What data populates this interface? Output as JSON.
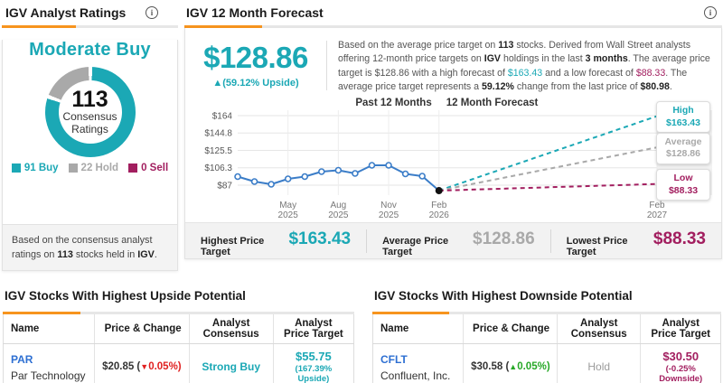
{
  "colors": {
    "accent_orange": "#F7941E",
    "teal": "#1BA8B5",
    "hold_gray": "#A9A9A9",
    "sell_magenta": "#A21E5F",
    "line_blue": "#3B7DC8",
    "link_blue": "#2D6FD2",
    "down_red": "#E02020",
    "up_green": "#27A827"
  },
  "icons": {
    "info": "i"
  },
  "left_panel": {
    "title": "IGV Analyst Ratings",
    "consensus": "Moderate Buy",
    "donut": {
      "count": "113",
      "label_line1": "Consensus",
      "label_line2": "Ratings"
    },
    "ratings": [
      {
        "text": "91 Buy",
        "count": 91,
        "color": "#1BA8B5"
      },
      {
        "text": "22 Hold",
        "count": 22,
        "color": "#A9A9A9"
      },
      {
        "text": "0 Sell",
        "count": 0,
        "color": "#A21E5F"
      }
    ],
    "footer": [
      "Based on the consensus analyst ratings on ",
      "113",
      " stocks held in ",
      "IGV",
      "."
    ]
  },
  "forecast_panel": {
    "title": "IGV 12 Month Forecast",
    "price": "$128.86",
    "upside": "▲(59.12% Upside)",
    "desc": [
      "Based on the average price target on ",
      "113",
      " stocks. Derived from Wall Street analysts offering 12-month price targets on ",
      "IGV",
      " holdings in the last ",
      "3 months",
      ". The average price target is $128.86 with a high forecast of ",
      "$163.43",
      " and a low forecast of ",
      "$88.33",
      ". The average price target represents a ",
      "59.12%",
      " change from the last price of ",
      "$80.98",
      "."
    ],
    "stats": [
      {
        "label": "Highest Price Target",
        "value": "$163.43",
        "color": "#1BA8B5"
      },
      {
        "label": "Average Price Target",
        "value": "$128.86",
        "color": "#A9A9A9"
      },
      {
        "label": "Lowest Price Target",
        "value": "$88.33",
        "color": "#A21E5F"
      }
    ]
  },
  "chart_data": {
    "type": "line",
    "title": "",
    "period_labels": [
      "Past 12 Months",
      "12 Month Forecast"
    ],
    "ytick_labels": [
      "$164",
      "$144.8",
      "$125.5",
      "$106.3",
      "$87"
    ],
    "ytick_values": [
      164,
      144.8,
      125.5,
      106.3,
      87
    ],
    "ylim": [
      76,
      170
    ],
    "x_axis": {
      "months_past": 12,
      "months_forecast": 12,
      "tick_months": [
        3,
        6,
        9,
        12,
        24
      ],
      "tick_labels": [
        [
          "May",
          "2025"
        ],
        [
          "Aug",
          "2025"
        ],
        [
          "Nov",
          "2025"
        ],
        [
          "Feb",
          "2026"
        ],
        [
          "Feb",
          "2027"
        ]
      ]
    },
    "past_series": {
      "name": "IGV price",
      "color": "#3B7DC8",
      "x_months": [
        0,
        1,
        2,
        3,
        4,
        5,
        6,
        7,
        8,
        9,
        10,
        11,
        12
      ],
      "values": [
        96.5,
        91,
        88,
        94,
        96.5,
        102,
        103.5,
        100,
        109,
        109,
        99.5,
        97,
        80.98
      ]
    },
    "last_price": 80.98,
    "forecast_lines": [
      {
        "label": "High",
        "value": 163.43,
        "display": "$163.43",
        "color": "#1BA8B5"
      },
      {
        "label": "Average",
        "value": 128.86,
        "display": "$128.86",
        "color": "#A9A9A9"
      },
      {
        "label": "Low",
        "value": 88.33,
        "display": "$88.33",
        "color": "#A21E5F"
      }
    ],
    "legend_position": "none",
    "grid": true
  },
  "tables": [
    {
      "title": "IGV Stocks With Highest Upside Potential",
      "headers": [
        "Name",
        "Price & Change",
        "Analyst Consensus",
        "Analyst Price Target"
      ],
      "row": {
        "ticker": "PAR",
        "company": "Par Technology",
        "price_prefix": "$20.85 (",
        "arrow": "▼",
        "change": "0.05%)",
        "direction": "down",
        "consensus": "Strong Buy",
        "target": "$55.75",
        "target_sub": "(167.39% Upside)"
      }
    },
    {
      "title": "IGV Stocks With Highest Downside Potential",
      "headers": [
        "Name",
        "Price & Change",
        "Analyst Consensus",
        "Analyst Price Target"
      ],
      "row": {
        "ticker": "CFLT",
        "company": "Confluent, Inc.",
        "price_prefix": "$30.58 (",
        "arrow": "▲",
        "change": "0.05%)",
        "direction": "up",
        "consensus": "Hold",
        "target": "$30.50",
        "target_sub": "(-0.25% Downside)"
      }
    }
  ]
}
